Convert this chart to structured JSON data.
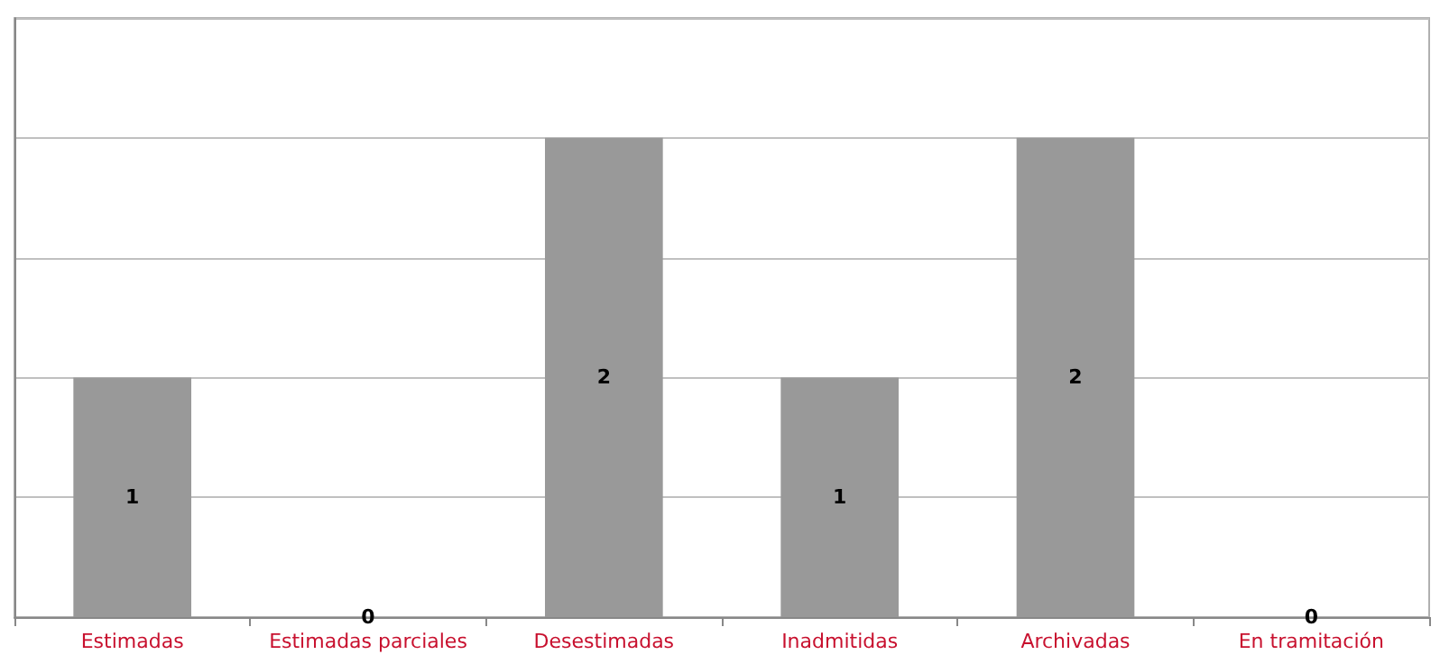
{
  "chart_data": {
    "type": "bar",
    "categories": [
      "Estimadas",
      "Estimadas parciales",
      "Desestimadas",
      "Inadmitidas",
      "Archivadas",
      "En tramitación"
    ],
    "values": [
      1,
      0,
      2,
      1,
      2,
      0
    ],
    "color": "#999999",
    "ylim": [
      0,
      2.5
    ],
    "yticks": [
      {
        "value": 0,
        "label": null
      },
      {
        "value": 0.5,
        "label": null
      },
      {
        "value": 1,
        "label": null
      },
      {
        "value": 1.5,
        "label": null
      },
      {
        "value": 2,
        "label": null
      },
      {
        "value": 2.5,
        "label": null
      }
    ],
    "tick_labels": "x",
    "grid": "y",
    "data_labels": true
  }
}
